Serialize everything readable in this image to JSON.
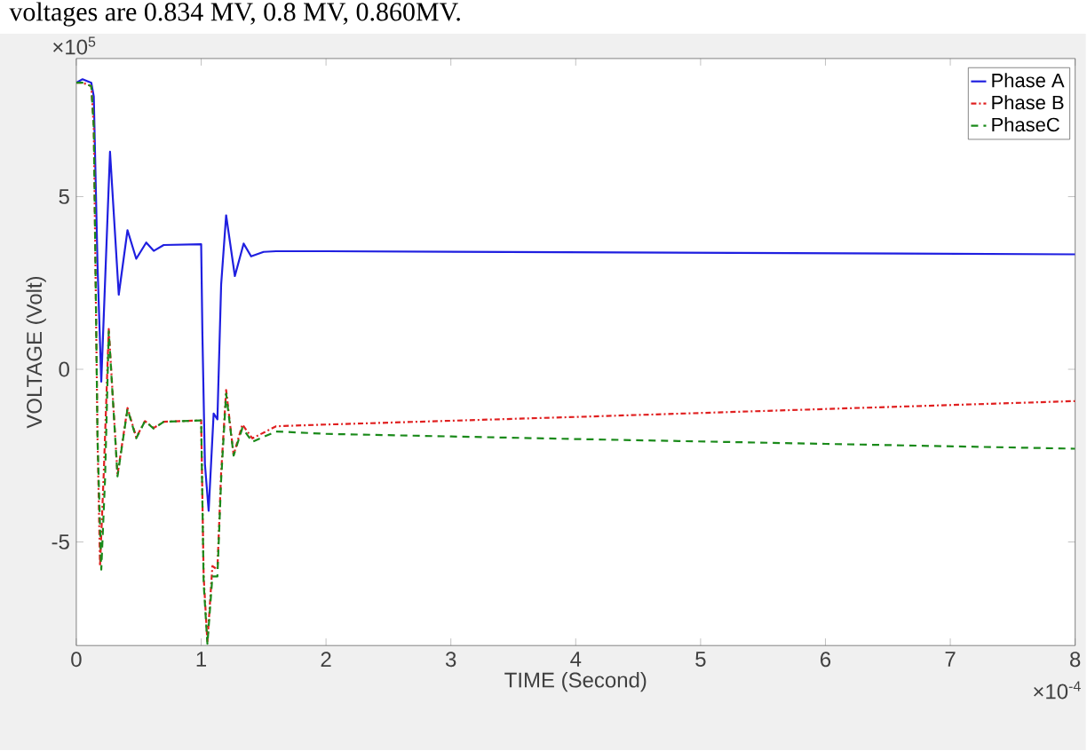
{
  "chart_data": {
    "type": "line",
    "xlabel": "TIME (Second)",
    "ylabel": "VOLTAGE (Volt)",
    "annotations": [
      "voltages are 0.834 MV, 0.8 MV, 0.860MV.",
      "×10$^{5}$",
      "×10$^{-4}$"
    ],
    "xlim": [
      0,
      8
    ],
    "ylim": [
      -8,
      9
    ],
    "xticks": [
      0,
      1,
      2,
      3,
      4,
      5,
      6,
      7,
      8
    ],
    "yticks": [
      -5,
      0,
      5
    ],
    "grid": false,
    "legend": "top right",
    "series": [
      {
        "name": "Phase A",
        "color": "#1f1fe0",
        "line_style": "solid",
        "x": [
          0,
          0.05,
          0.12,
          0.14,
          0.17,
          0.2,
          0.23,
          0.27,
          0.34,
          0.41,
          0.48,
          0.56,
          0.62,
          0.7,
          1.0,
          1.01,
          1.03,
          1.06,
          1.1,
          1.13,
          1.16,
          1.2,
          1.27,
          1.34,
          1.4,
          1.5,
          1.6,
          2,
          4,
          6,
          8
        ],
        "values": [
          8.3,
          8.4,
          8.3,
          7.9,
          3.0,
          -0.36,
          2.5,
          6.3,
          2.16,
          4.03,
          3.2,
          3.67,
          3.43,
          3.6,
          3.62,
          1.0,
          -2.74,
          -4.1,
          -1.28,
          -1.45,
          2.45,
          4.46,
          2.7,
          3.64,
          3.27,
          3.4,
          3.42,
          3.42,
          3.39,
          3.36,
          3.33
        ]
      },
      {
        "name": "Phase B",
        "color": "#e02020",
        "line_style": "dashdot",
        "x": [
          0,
          0.05,
          0.12,
          0.14,
          0.17,
          0.19,
          0.22,
          0.26,
          0.33,
          0.41,
          0.48,
          0.55,
          0.62,
          0.7,
          1.0,
          1.02,
          1.05,
          1.09,
          1.13,
          1.16,
          1.2,
          1.26,
          1.33,
          1.41,
          1.6,
          2,
          4,
          6,
          8
        ],
        "values": [
          8.3,
          8.3,
          8.2,
          7.0,
          -2.0,
          -5.7,
          -3.0,
          1.17,
          -3.06,
          -1.12,
          -1.97,
          -1.5,
          -1.7,
          -1.52,
          -1.48,
          -6.0,
          -7.9,
          -5.7,
          -5.8,
          -3.0,
          -0.6,
          -2.48,
          -1.6,
          -2.0,
          -1.65,
          -1.6,
          -1.38,
          -1.15,
          -0.92
        ]
      },
      {
        "name": "PhaseC",
        "color": "#1a8a1a",
        "line_style": "dashed",
        "x": [
          0,
          0.05,
          0.12,
          0.14,
          0.17,
          0.2,
          0.23,
          0.26,
          0.33,
          0.41,
          0.48,
          0.55,
          0.62,
          0.7,
          1.0,
          1.02,
          1.05,
          1.09,
          1.13,
          1.16,
          1.2,
          1.26,
          1.33,
          1.41,
          1.6,
          2,
          4,
          6,
          8
        ],
        "values": [
          8.3,
          8.3,
          8.2,
          7.0,
          -2.0,
          -5.8,
          -3.2,
          1.1,
          -3.1,
          -1.15,
          -2.0,
          -1.5,
          -1.72,
          -1.52,
          -1.48,
          -6.2,
          -7.95,
          -6.0,
          -6.0,
          -3.2,
          -0.7,
          -2.5,
          -1.7,
          -2.1,
          -1.8,
          -1.87,
          -2.02,
          -2.16,
          -2.3
        ]
      }
    ]
  }
}
